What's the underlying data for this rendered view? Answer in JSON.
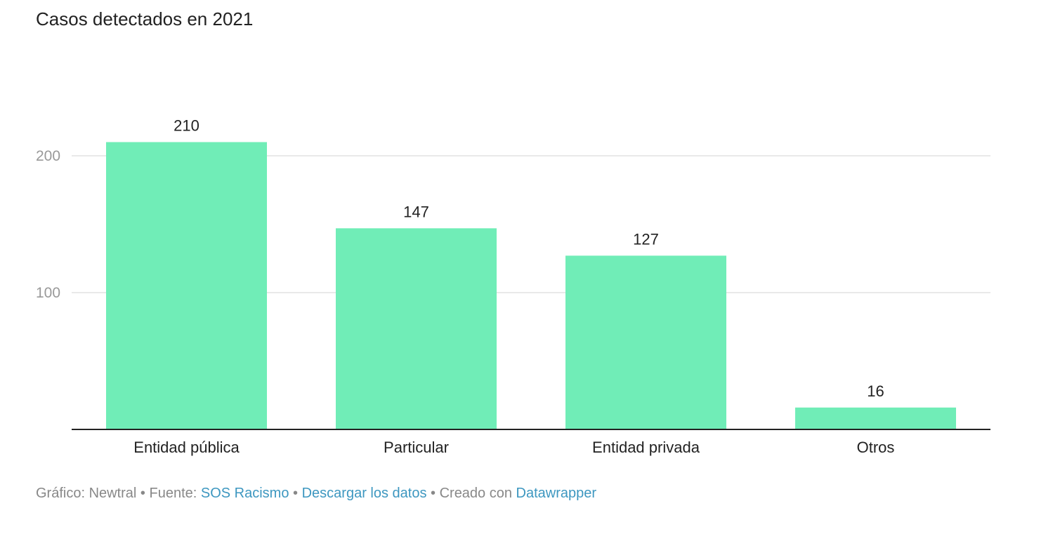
{
  "chart_data": {
    "type": "bar",
    "title": "Casos detectados en 2021",
    "categories": [
      "Entidad pública",
      "Particular",
      "Entidad privada",
      "Otros"
    ],
    "values": [
      210,
      147,
      127,
      16
    ],
    "xlabel": "",
    "ylabel": "",
    "ylim": [
      0,
      220
    ],
    "yticks": [
      100,
      200
    ],
    "grid": true,
    "bar_color": "#70edb7",
    "gridline_color": "#e2e2e2",
    "tick_label_color": "#999999",
    "baseline_color": "#222222"
  },
  "footer": {
    "credit_prefix": "Gráfico: Newtral • Fuente: ",
    "source_link": "SOS Racismo",
    "separator_1": " • ",
    "download_link": "Descargar los datos",
    "created_with": " • Creado con ",
    "tool_link": "Datawrapper"
  },
  "colors": {
    "link": "#3d97c0",
    "footer_text": "#888888",
    "title_text": "#222222"
  }
}
